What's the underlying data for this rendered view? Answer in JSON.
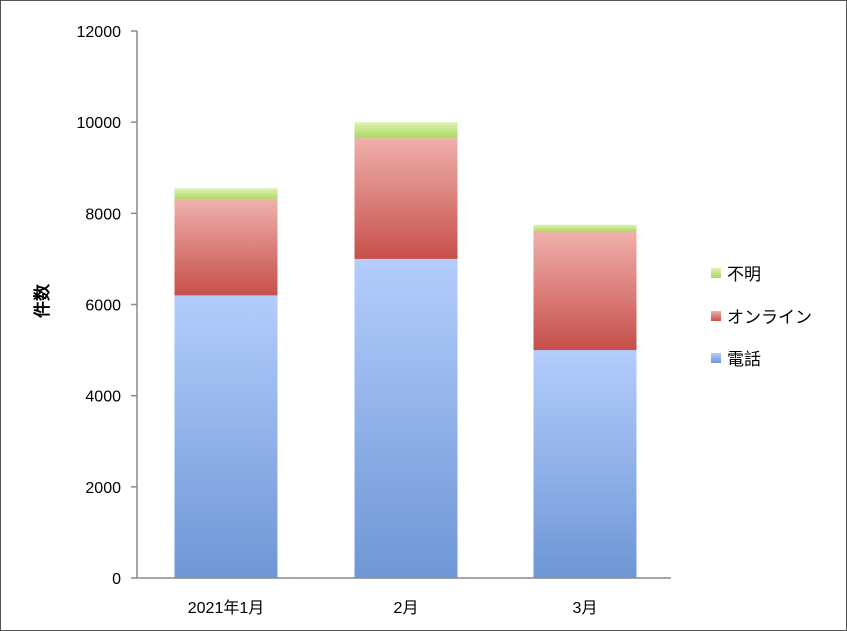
{
  "chart_data": {
    "type": "bar",
    "stacked": true,
    "categories": [
      "2021年1月",
      "2月",
      "3月"
    ],
    "series": [
      {
        "name": "電話",
        "values": [
          6200,
          7000,
          5000
        ],
        "color": "#7da3e8"
      },
      {
        "name": "オンライン",
        "values": [
          2100,
          2650,
          2600
        ],
        "color": "#d9706c"
      },
      {
        "name": "不明",
        "values": [
          250,
          350,
          150
        ],
        "color": "#b8e07a"
      }
    ],
    "title": "",
    "xlabel": "",
    "ylabel": "件数",
    "ylim": [
      0,
      12000
    ],
    "yticks": [
      0,
      2000,
      4000,
      6000,
      8000,
      10000,
      12000
    ],
    "grid": false,
    "legend_position": "right",
    "legend_order": [
      "不明",
      "オンライン",
      "電話"
    ]
  }
}
